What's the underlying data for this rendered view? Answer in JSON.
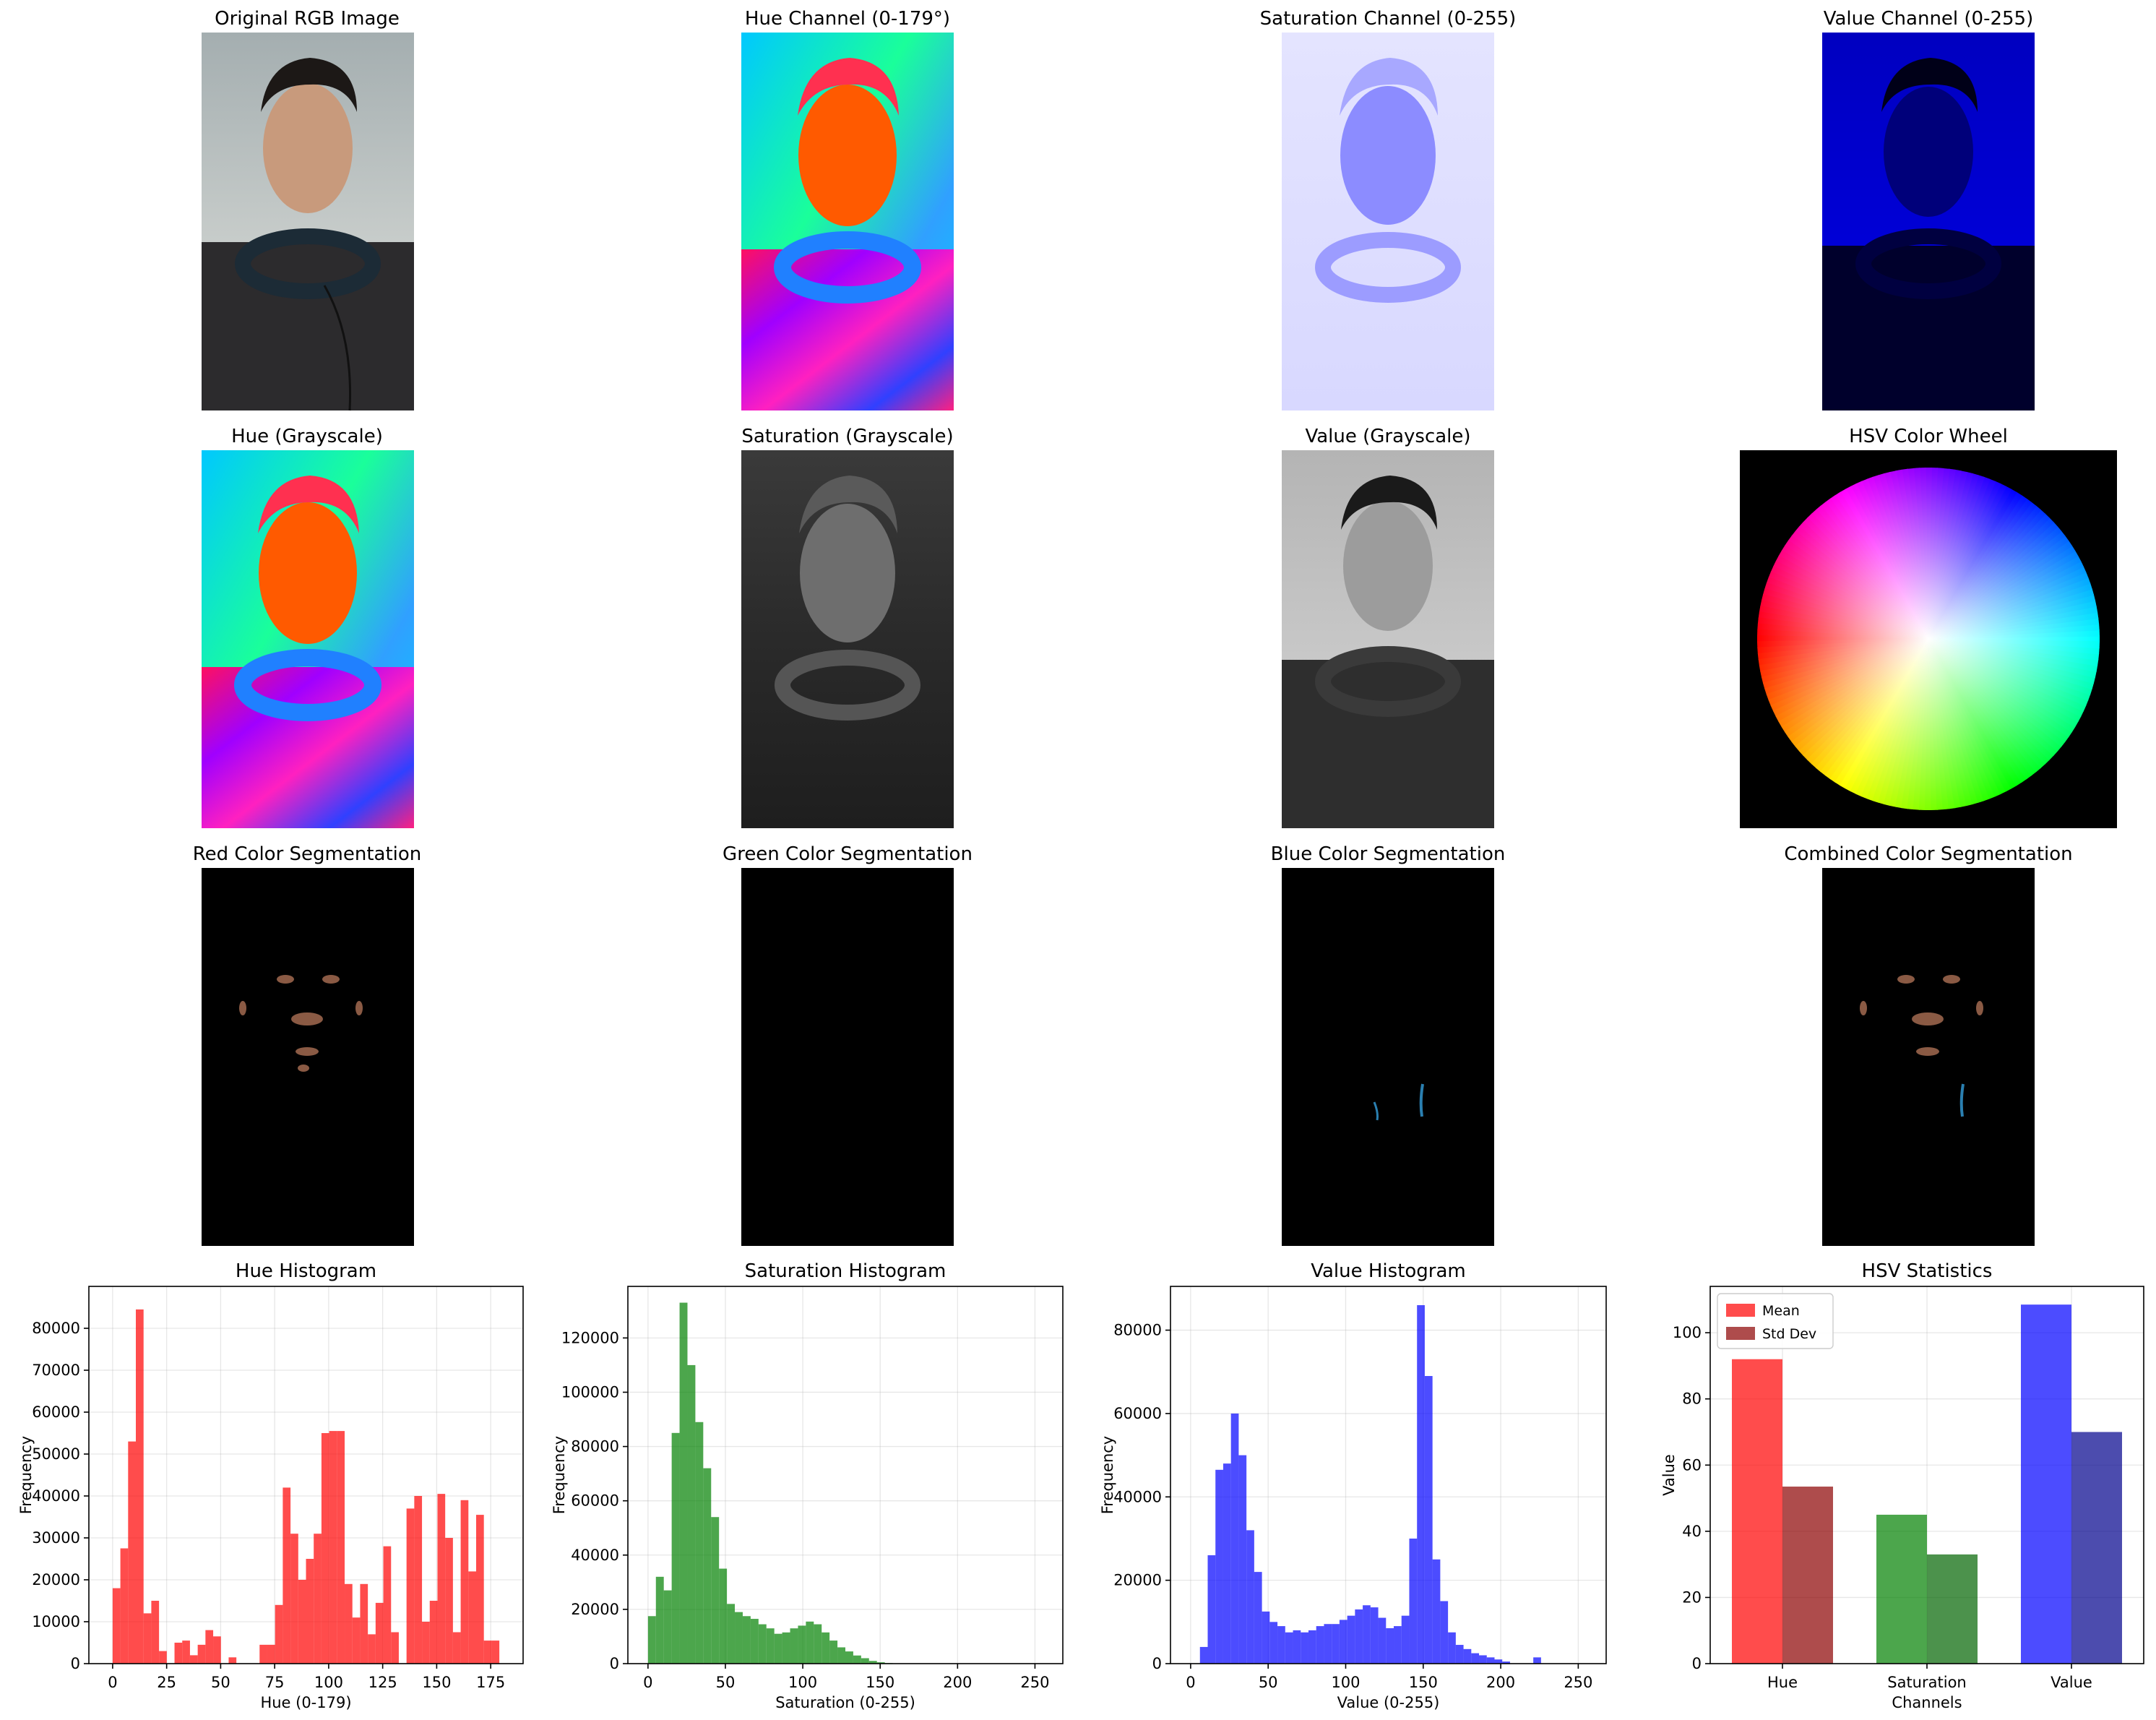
{
  "panels": {
    "original": {
      "title": "Original RGB Image"
    },
    "hue_channel": {
      "title": "Hue Channel (0-179°)"
    },
    "sat_channel": {
      "title": "Saturation Channel (0-255)"
    },
    "val_channel": {
      "title": "Value Channel (0-255)"
    },
    "hue_gray": {
      "title": "Hue (Grayscale)"
    },
    "sat_gray": {
      "title": "Saturation (Grayscale)"
    },
    "val_gray": {
      "title": "Value (Grayscale)"
    },
    "wheel": {
      "title": "HSV Color Wheel"
    },
    "red_seg": {
      "title": "Red Color Segmentation"
    },
    "green_seg": {
      "title": "Green Color Segmentation"
    },
    "blue_seg": {
      "title": "Blue Color Segmentation"
    },
    "comb_seg": {
      "title": "Combined Color Segmentation"
    }
  },
  "chart_data": [
    {
      "type": "bar",
      "title": "Hue Histogram",
      "xlabel": "Hue (0-179)",
      "ylabel": "Frequency",
      "color": "#ff0000",
      "alpha": 0.7,
      "grid": true,
      "xlim": [
        -11,
        190
      ],
      "ylim": [
        0,
        90000
      ],
      "xticks": [
        0,
        25,
        50,
        75,
        100,
        125,
        150,
        175
      ],
      "yticks": [
        0,
        10000,
        20000,
        30000,
        40000,
        50000,
        60000,
        70000,
        80000
      ],
      "bin_start": 0,
      "bin_width": 3.58,
      "values": [
        18000,
        27500,
        53000,
        84500,
        12000,
        15000,
        3000,
        0,
        5000,
        5500,
        2000,
        4500,
        8000,
        6500,
        0,
        1500,
        0,
        0,
        0,
        4500,
        4500,
        14000,
        42000,
        31000,
        20000,
        25000,
        31000,
        55000,
        55500,
        55500,
        19000,
        11000,
        19000,
        7000,
        14500,
        28000,
        7500,
        0,
        37000,
        40000,
        10000,
        15000,
        40500,
        30000,
        7500,
        39000,
        22000,
        35500,
        5500,
        5500
      ]
    },
    {
      "type": "bar",
      "title": "Saturation Histogram",
      "xlabel": "Saturation (0-255)",
      "ylabel": "Frequency",
      "color": "#008000",
      "alpha": 0.7,
      "grid": true,
      "xlim": [
        -13,
        268
      ],
      "ylim": [
        0,
        139000
      ],
      "xticks": [
        0,
        50,
        100,
        150,
        200,
        250
      ],
      "yticks": [
        0,
        20000,
        40000,
        60000,
        80000,
        100000,
        120000
      ],
      "bin_start": 0,
      "bin_width": 5.1,
      "values": [
        17500,
        32000,
        27000,
        85000,
        133000,
        110000,
        89000,
        72000,
        54000,
        35000,
        22000,
        19000,
        17500,
        16500,
        14500,
        13000,
        11000,
        11500,
        13000,
        14000,
        15500,
        14500,
        11500,
        8500,
        6000,
        4500,
        3000,
        2000,
        1000,
        500,
        200,
        100,
        0,
        0,
        0,
        0,
        0,
        0,
        0,
        0,
        0,
        0,
        0,
        0,
        0,
        0,
        0,
        0,
        0,
        0
      ]
    },
    {
      "type": "bar",
      "title": "Value Histogram",
      "xlabel": "Value (0-255)",
      "ylabel": "Frequency",
      "color": "#0000ff",
      "alpha": 0.7,
      "grid": true,
      "xlim": [
        -13,
        268
      ],
      "ylim": [
        0,
        90500
      ],
      "xticks": [
        0,
        50,
        100,
        150,
        200,
        250
      ],
      "yticks": [
        0,
        20000,
        40000,
        60000,
        80000
      ],
      "bin_start": 6,
      "bin_width": 5.0,
      "values": [
        4000,
        26000,
        46500,
        48000,
        60000,
        50000,
        32000,
        22000,
        12500,
        10000,
        9000,
        7500,
        8000,
        7500,
        8000,
        9000,
        9500,
        9500,
        10500,
        11500,
        13000,
        14000,
        13500,
        11000,
        8500,
        9000,
        11500,
        30000,
        86000,
        69000,
        25000,
        15000,
        7500,
        4500,
        3500,
        2500,
        2000,
        1500,
        1000,
        500,
        0,
        0,
        0,
        1500
      ]
    },
    {
      "type": "bar",
      "title": "HSV Statistics",
      "xlabel": "Channels",
      "ylabel": "Value",
      "grid": true,
      "ylim": [
        0,
        114
      ],
      "yticks": [
        0,
        20,
        40,
        60,
        80,
        100
      ],
      "categories": [
        "Hue",
        "Saturation",
        "Value"
      ],
      "legend_position": "upper-left",
      "series": [
        {
          "name": "Mean",
          "values": [
            92,
            45,
            108.5
          ],
          "colors": [
            "#ff0000",
            "#008000",
            "#0000ff"
          ],
          "alpha": 0.7
        },
        {
          "name": "Std Dev",
          "values": [
            53.5,
            33,
            70
          ],
          "colors": [
            "#8b0000",
            "#006400",
            "#00008b"
          ],
          "alpha": 0.7
        }
      ],
      "legend_colors": [
        "#ff0000",
        "#8b0000"
      ]
    }
  ]
}
